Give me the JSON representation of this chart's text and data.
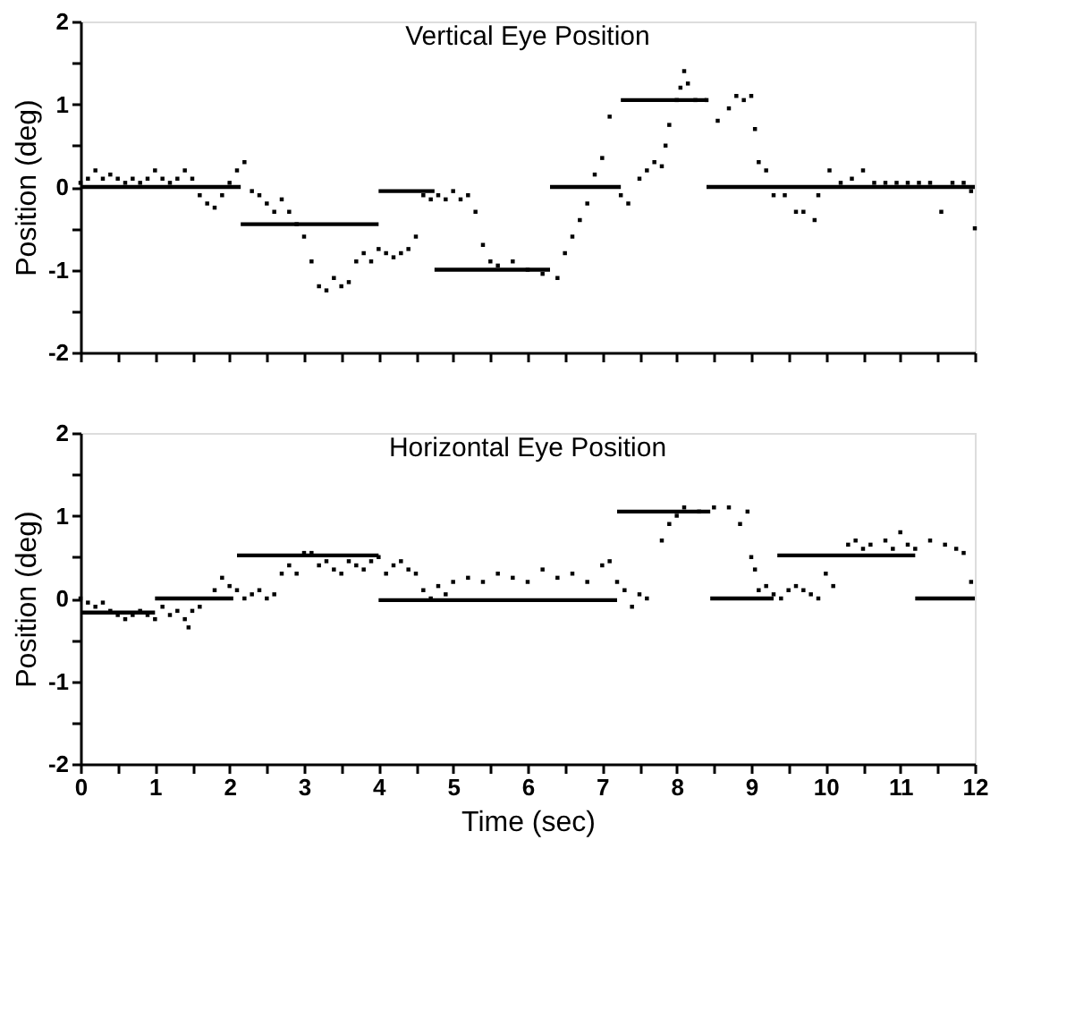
{
  "chart_data": [
    {
      "type": "scatter",
      "title": "Vertical Eye Position",
      "ylabel": "Position (deg)",
      "xlim": [
        0,
        12
      ],
      "ylim": [
        -2,
        2
      ],
      "xticks": [
        0,
        {
          "value": 0.5,
          "label": null
        },
        1,
        {
          "value": 1.5,
          "label": null
        },
        2,
        {
          "value": 2.5,
          "label": null
        },
        3,
        {
          "value": 3.5,
          "label": null
        },
        4,
        {
          "value": 4.5,
          "label": null
        },
        5,
        {
          "value": 5.5,
          "label": null
        },
        6,
        {
          "value": 6.5,
          "label": null
        },
        7,
        {
          "value": 7.5,
          "label": null
        },
        8,
        {
          "value": 8.5,
          "label": null
        },
        9,
        {
          "value": 9.5,
          "label": null
        },
        10,
        {
          "value": 10.5,
          "label": null
        },
        11,
        {
          "value": 11.5,
          "label": null
        },
        12
      ],
      "yticks": [
        -2,
        {
          "value": -1.5,
          "label": null
        },
        -1,
        {
          "value": -0.5,
          "label": null
        },
        0,
        {
          "value": 0.5,
          "label": null
        },
        1,
        {
          "value": 1.5,
          "label": null
        },
        2
      ],
      "tick_labels": "y",
      "grid": false,
      "series": [
        {
          "marker": "square",
          "color": "#000000",
          "x": [
            0,
            0.1,
            0.2,
            0.3,
            0.4,
            0.5,
            0.6,
            0.7,
            0.8,
            0.9,
            1.0,
            1.1,
            1.2,
            1.3,
            1.4,
            1.5,
            1.6,
            1.7,
            1.8,
            1.9,
            2.0,
            2.1,
            2.2,
            2.3,
            2.4,
            2.5,
            2.6,
            2.7,
            2.8,
            2.9,
            3.0,
            3.1,
            3.2,
            3.3,
            3.4,
            3.5,
            3.6,
            3.7,
            3.8,
            3.9,
            4.0,
            4.1,
            4.2,
            4.3,
            4.4,
            4.5,
            4.6,
            4.7,
            4.8,
            4.9,
            5.0,
            5.1,
            5.2,
            5.3,
            5.4,
            5.5,
            5.6,
            5.8,
            6.0,
            6.2,
            6.4,
            6.5,
            6.6,
            6.7,
            6.8,
            6.9,
            7.0,
            7.1,
            7.25,
            7.35,
            7.5,
            7.6,
            7.7,
            7.8,
            7.85,
            7.9,
            8.0,
            8.05,
            8.1,
            8.15,
            8.25,
            8.4,
            8.55,
            8.7,
            8.8,
            8.9,
            9.0,
            9.05,
            9.1,
            9.2,
            9.3,
            9.45,
            9.6,
            9.7,
            9.85,
            9.9,
            10.05,
            10.2,
            10.35,
            10.5,
            10.65,
            10.8,
            10.95,
            11.1,
            11.25,
            11.4,
            11.55,
            11.7,
            11.85,
            11.95,
            12.0
          ],
          "values": [
            0.05,
            0.1,
            0.2,
            0.1,
            0.15,
            0.1,
            0.05,
            0.1,
            0.05,
            0.1,
            0.2,
            0.1,
            0.05,
            0.1,
            0.2,
            0.1,
            -0.1,
            -0.2,
            -0.25,
            -0.1,
            0.05,
            0.2,
            0.3,
            -0.05,
            -0.1,
            -0.2,
            -0.3,
            -0.15,
            -0.3,
            -0.45,
            -0.6,
            -0.9,
            -1.2,
            -1.25,
            -1.1,
            -1.2,
            -1.15,
            -0.9,
            -0.8,
            -0.9,
            -0.75,
            -0.8,
            -0.85,
            -0.8,
            -0.75,
            -0.6,
            -0.1,
            -0.15,
            -0.1,
            -0.15,
            -0.05,
            -0.15,
            -0.1,
            -0.3,
            -0.7,
            -0.9,
            -0.95,
            -0.9,
            -1.0,
            -1.05,
            -1.1,
            -0.8,
            -0.6,
            -0.4,
            -0.2,
            0.15,
            0.35,
            0.85,
            -0.1,
            -0.2,
            0.1,
            0.2,
            0.3,
            0.25,
            0.5,
            0.75,
            1.05,
            1.2,
            1.4,
            1.25,
            1.05,
            1.05,
            0.8,
            0.95,
            1.1,
            1.05,
            1.1,
            0.7,
            0.3,
            0.2,
            -0.1,
            -0.1,
            -0.3,
            -0.3,
            -0.4,
            -0.1,
            0.2,
            0.05,
            0.1,
            0.2,
            0.05,
            0.05,
            0.05,
            0.05,
            0.05,
            0.05,
            -0.3,
            0.05,
            0.05,
            -0.05,
            -0.5
          ]
        },
        {
          "type": "line",
          "color": "#000000",
          "x": [
            0,
            2.15
          ],
          "values": [
            0,
            0
          ]
        },
        {
          "type": "line",
          "color": "#000000",
          "x": [
            2.15,
            4.0
          ],
          "values": [
            -0.45,
            -0.45
          ]
        },
        {
          "type": "line",
          "color": "#000000",
          "x": [
            4.0,
            4.75
          ],
          "values": [
            -0.05,
            -0.05
          ]
        },
        {
          "type": "line",
          "color": "#000000",
          "x": [
            4.75,
            6.3
          ],
          "values": [
            -1.0,
            -1.0
          ]
        },
        {
          "type": "line",
          "color": "#000000",
          "x": [
            6.3,
            7.25
          ],
          "values": [
            0,
            0
          ]
        },
        {
          "type": "line",
          "color": "#000000",
          "x": [
            7.25,
            8.4
          ],
          "values": [
            1.05,
            1.05
          ]
        },
        {
          "type": "line",
          "color": "#000000",
          "x": [
            8.4,
            12
          ],
          "values": [
            0,
            0
          ]
        }
      ]
    },
    {
      "type": "scatter",
      "title": "Horizontal Eye Position",
      "xlabel": "Time (sec)",
      "ylabel": "Position (deg)",
      "xlim": [
        0,
        12
      ],
      "ylim": [
        -2,
        2
      ],
      "xticks": [
        0,
        {
          "value": 0.5,
          "label": null
        },
        1,
        {
          "value": 1.5,
          "label": null
        },
        2,
        {
          "value": 2.5,
          "label": null
        },
        3,
        {
          "value": 3.5,
          "label": null
        },
        4,
        {
          "value": 4.5,
          "label": null
        },
        5,
        {
          "value": 5.5,
          "label": null
        },
        6,
        {
          "value": 6.5,
          "label": null
        },
        7,
        {
          "value": 7.5,
          "label": null
        },
        8,
        {
          "value": 8.5,
          "label": null
        },
        9,
        {
          "value": 9.5,
          "label": null
        },
        10,
        {
          "value": 10.5,
          "label": null
        },
        11,
        {
          "value": 11.5,
          "label": null
        },
        12
      ],
      "yticks": [
        -2,
        {
          "value": -1.5,
          "label": null
        },
        -1,
        {
          "value": -0.5,
          "label": null
        },
        0,
        {
          "value": 0.5,
          "label": null
        },
        1,
        {
          "value": 1.5,
          "label": null
        },
        2
      ],
      "grid": false,
      "series": [
        {
          "marker": "square",
          "color": "#000000",
          "x": [
            0,
            0.1,
            0.2,
            0.3,
            0.4,
            0.5,
            0.6,
            0.7,
            0.8,
            0.9,
            1.0,
            1.1,
            1.2,
            1.3,
            1.4,
            1.45,
            1.5,
            1.6,
            1.8,
            1.9,
            2.0,
            2.1,
            2.2,
            2.3,
            2.4,
            2.5,
            2.6,
            2.7,
            2.8,
            2.9,
            3.0,
            3.1,
            3.2,
            3.3,
            3.4,
            3.5,
            3.6,
            3.7,
            3.8,
            3.9,
            4.0,
            4.1,
            4.2,
            4.3,
            4.4,
            4.5,
            4.6,
            4.7,
            4.8,
            4.9,
            5.0,
            5.2,
            5.4,
            5.6,
            5.8,
            6.0,
            6.2,
            6.4,
            6.6,
            6.8,
            7.0,
            7.1,
            7.2,
            7.3,
            7.4,
            7.5,
            7.6,
            7.8,
            7.9,
            8.0,
            8.1,
            8.3,
            8.5,
            8.7,
            8.85,
            8.95,
            9.0,
            9.05,
            9.1,
            9.2,
            9.3,
            9.4,
            9.5,
            9.6,
            9.7,
            9.8,
            9.9,
            10.0,
            10.1,
            10.3,
            10.4,
            10.5,
            10.6,
            10.8,
            10.9,
            11.0,
            11.1,
            11.2,
            11.4,
            11.6,
            11.75,
            11.85,
            11.95
          ],
          "values": [
            0.0,
            -0.05,
            -0.1,
            -0.05,
            -0.15,
            -0.2,
            -0.25,
            -0.2,
            -0.15,
            -0.2,
            -0.25,
            -0.1,
            -0.2,
            -0.15,
            -0.25,
            -0.35,
            -0.15,
            -0.1,
            0.1,
            0.25,
            0.15,
            0.1,
            0.0,
            0.05,
            0.1,
            0.0,
            0.05,
            0.3,
            0.4,
            0.3,
            0.55,
            0.55,
            0.4,
            0.45,
            0.35,
            0.3,
            0.45,
            0.4,
            0.35,
            0.45,
            0.5,
            0.3,
            0.4,
            0.45,
            0.35,
            0.3,
            0.1,
            0.0,
            0.15,
            0.05,
            0.2,
            0.25,
            0.2,
            0.3,
            0.25,
            0.2,
            0.35,
            0.25,
            0.3,
            0.2,
            0.4,
            0.45,
            0.2,
            0.1,
            -0.1,
            0.05,
            0.0,
            0.7,
            0.9,
            1.0,
            1.1,
            1.05,
            1.1,
            1.1,
            0.9,
            1.05,
            0.5,
            0.35,
            0.1,
            0.15,
            0.05,
            0.0,
            0.1,
            0.15,
            0.1,
            0.05,
            0.0,
            0.3,
            0.15,
            0.65,
            0.7,
            0.6,
            0.65,
            0.7,
            0.6,
            0.8,
            0.65,
            0.6,
            0.7,
            0.65,
            0.6,
            0.55,
            0.2
          ]
        },
        {
          "type": "line",
          "color": "#000000",
          "x": [
            0,
            1.0
          ],
          "values": [
            -0.17,
            -0.17
          ]
        },
        {
          "type": "line",
          "color": "#000000",
          "x": [
            1.0,
            2.05
          ],
          "values": [
            0,
            0
          ]
        },
        {
          "type": "line",
          "color": "#000000",
          "x": [
            2.1,
            4.0
          ],
          "values": [
            0.52,
            0.52
          ]
        },
        {
          "type": "line",
          "color": "#000000",
          "x": [
            4.0,
            7.2
          ],
          "values": [
            -0.02,
            -0.02
          ]
        },
        {
          "type": "line",
          "color": "#000000",
          "x": [
            7.2,
            8.45
          ],
          "values": [
            1.05,
            1.05
          ]
        },
        {
          "type": "line",
          "color": "#000000",
          "x": [
            8.45,
            9.3
          ],
          "values": [
            0,
            0
          ]
        },
        {
          "type": "line",
          "color": "#000000",
          "x": [
            9.35,
            11.2
          ],
          "values": [
            0.52,
            0.52
          ]
        },
        {
          "type": "line",
          "color": "#000000",
          "x": [
            11.2,
            12
          ],
          "values": [
            0,
            0
          ]
        }
      ]
    }
  ]
}
